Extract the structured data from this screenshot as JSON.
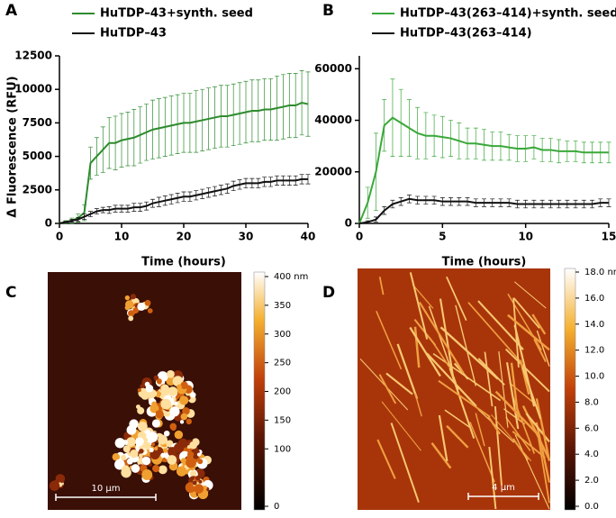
{
  "chart_data": [
    {
      "type": "line",
      "label": "A",
      "xlabel": "Time (hours)",
      "ylabel": "Δ Fluorescence (RFU)",
      "xlim": [
        0,
        40
      ],
      "xticks": [
        0,
        10,
        20,
        30,
        40
      ],
      "ylim": [
        0,
        12500
      ],
      "yticks": [
        0,
        2500,
        5000,
        7500,
        10000,
        12500
      ],
      "x": [
        0,
        1,
        2,
        3,
        4,
        5,
        6,
        7,
        8,
        9,
        10,
        11,
        12,
        13,
        14,
        15,
        16,
        17,
        18,
        19,
        20,
        21,
        22,
        23,
        24,
        25,
        26,
        27,
        28,
        29,
        30,
        31,
        32,
        33,
        34,
        35,
        36,
        37,
        38,
        39,
        40
      ],
      "series": [
        {
          "name": "HuTDP–43+synth. seed",
          "color": "#2e8b2e",
          "values": [
            0,
            100,
            200,
            400,
            800,
            4500,
            5000,
            5500,
            6000,
            6000,
            6200,
            6300,
            6400,
            6600,
            6800,
            7000,
            7100,
            7200,
            7300,
            7400,
            7500,
            7500,
            7600,
            7700,
            7800,
            7900,
            8000,
            8000,
            8100,
            8200,
            8300,
            8400,
            8400,
            8500,
            8500,
            8600,
            8700,
            8800,
            8800,
            9000,
            8900
          ],
          "errors": [
            0,
            100,
            200,
            300,
            600,
            1200,
            1400,
            1700,
            1900,
            2000,
            2000,
            2000,
            2100,
            2100,
            2100,
            2200,
            2200,
            2200,
            2200,
            2200,
            2200,
            2200,
            2300,
            2300,
            2300,
            2300,
            2300,
            2300,
            2300,
            2300,
            2300,
            2300,
            2300,
            2300,
            2300,
            2400,
            2400,
            2400,
            2400,
            2400,
            2400
          ]
        },
        {
          "name": "HuTDP–43",
          "color": "#111111",
          "values": [
            0,
            100,
            200,
            300,
            500,
            700,
            900,
            1000,
            1000,
            1100,
            1100,
            1100,
            1200,
            1200,
            1300,
            1500,
            1600,
            1700,
            1800,
            1900,
            2000,
            2000,
            2100,
            2200,
            2300,
            2400,
            2500,
            2600,
            2800,
            2900,
            3000,
            3000,
            3000,
            3100,
            3100,
            3200,
            3200,
            3200,
            3200,
            3300,
            3300
          ],
          "errors": [
            0,
            50,
            100,
            150,
            200,
            200,
            200,
            200,
            250,
            250,
            250,
            250,
            300,
            300,
            300,
            300,
            350,
            350,
            350,
            350,
            350,
            350,
            350,
            350,
            350,
            350,
            350,
            350,
            350,
            350,
            350,
            350,
            350,
            350,
            350,
            350,
            350,
            350,
            350,
            350,
            350
          ]
        }
      ]
    },
    {
      "type": "line",
      "label": "B",
      "xlabel": "Time (hours)",
      "xlim": [
        0,
        15
      ],
      "xticks": [
        0,
        5,
        10,
        15
      ],
      "ylim": [
        0,
        65000
      ],
      "yticks": [
        0,
        20000,
        40000,
        60000
      ],
      "x": [
        0,
        0.5,
        1,
        1.5,
        2,
        2.5,
        3,
        3.5,
        4,
        4.5,
        5,
        5.5,
        6,
        6.5,
        7,
        7.5,
        8,
        8.5,
        9,
        9.5,
        10,
        10.5,
        11,
        11.5,
        12,
        12.5,
        13,
        13.5,
        14,
        14.5,
        15
      ],
      "series": [
        {
          "name": "HuTDP–43(263–414)+synth. seed",
          "color": "#3aa83a",
          "values": [
            0,
            8000,
            20000,
            38000,
            41000,
            39000,
            37000,
            35000,
            34000,
            34000,
            33500,
            33000,
            32000,
            31000,
            31000,
            30500,
            30000,
            30000,
            29500,
            29000,
            29000,
            29500,
            28500,
            28500,
            28000,
            28000,
            28000,
            27500,
            27500,
            27500,
            27500
          ],
          "errors": [
            0,
            6000,
            15000,
            10000,
            15000,
            13000,
            11000,
            10000,
            9000,
            8000,
            8000,
            7000,
            7000,
            6000,
            6000,
            6000,
            5500,
            5500,
            5000,
            5000,
            5000,
            4500,
            4500,
            4500,
            4500,
            4000,
            4000,
            4000,
            4000,
            4000,
            4000
          ]
        },
        {
          "name": "HuTDP–43(263–414)",
          "color": "#111111",
          "values": [
            0,
            500,
            1500,
            5000,
            7500,
            8500,
            9500,
            9000,
            9000,
            9000,
            8500,
            8500,
            8500,
            8500,
            8000,
            8000,
            8000,
            8000,
            8000,
            7500,
            7500,
            7500,
            7500,
            7500,
            7500,
            7500,
            7500,
            7500,
            7500,
            8000,
            8000
          ],
          "errors": [
            0,
            500,
            1000,
            1500,
            1500,
            1500,
            1500,
            1500,
            1500,
            1500,
            1500,
            1500,
            1500,
            1500,
            1500,
            1500,
            1500,
            1500,
            1500,
            1500,
            1500,
            1500,
            1500,
            1500,
            1500,
            1500,
            1500,
            1500,
            1500,
            1500,
            1500
          ]
        }
      ]
    }
  ],
  "panels": [
    {
      "label": "C",
      "scale_bar": "10 µm",
      "colorbar": {
        "lim": [
          0,
          400
        ],
        "ticks": [
          {
            "value": 400,
            "label": "400 nm"
          },
          350,
          300,
          250,
          200,
          150,
          100,
          0
        ]
      }
    },
    {
      "label": "D",
      "scale_bar": "4 µm",
      "colorbar": {
        "lim": [
          0,
          18
        ],
        "ticks": [
          {
            "value": 18,
            "label": "18.0 nm"
          },
          {
            "value": 16,
            "label": "16.0"
          },
          {
            "value": 14,
            "label": "14.0"
          },
          {
            "value": 12,
            "label": "12.0"
          },
          {
            "value": 10,
            "label": "10.0"
          },
          {
            "value": 8,
            "label": "8.0"
          },
          {
            "value": 6,
            "label": "6.0"
          },
          {
            "value": 4,
            "label": "4.0"
          },
          {
            "value": 2,
            "label": "2.0"
          },
          {
            "value": 0,
            "label": "0.0"
          }
        ]
      }
    }
  ]
}
